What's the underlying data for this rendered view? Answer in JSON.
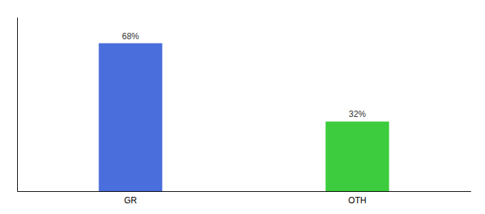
{
  "chart_data": {
    "type": "bar",
    "categories": [
      "GR",
      "OTH"
    ],
    "values": [
      68,
      32
    ],
    "value_labels": [
      "68%",
      "32%"
    ],
    "colors": [
      "#4a6edb",
      "#3dcc3d"
    ],
    "ylim": [
      0,
      80
    ],
    "data_labels": true,
    "tick_labels": "x"
  }
}
